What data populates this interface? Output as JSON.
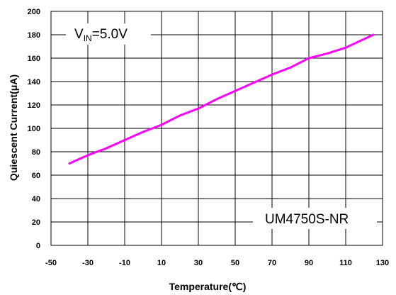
{
  "chart_data": {
    "type": "line",
    "xlabel": "Temperature(℃)",
    "ylabel": "Quiescent Current(μA)",
    "xlim": [
      -50,
      130
    ],
    "ylim": [
      0,
      200
    ],
    "x_ticks": [
      -50,
      -30,
      -10,
      10,
      30,
      50,
      70,
      90,
      110,
      130
    ],
    "y_ticks": [
      0,
      20,
      40,
      60,
      80,
      100,
      120,
      140,
      160,
      180,
      200
    ],
    "grid": true,
    "line_color": "#ff00ff",
    "annotations": {
      "vin_prefix": "V",
      "vin_subscript": "IN",
      "vin_value": "=5.0V",
      "part_number": "UM4750S-NR"
    },
    "series": [
      {
        "x": [
          -40,
          -30,
          -20,
          -10,
          0,
          10,
          20,
          30,
          40,
          50,
          60,
          70,
          80,
          90,
          100,
          110,
          125
        ],
        "y": [
          70,
          77,
          83,
          90,
          97,
          103,
          111,
          117,
          125,
          132,
          139,
          146,
          152,
          160,
          164,
          169,
          180
        ]
      }
    ]
  }
}
